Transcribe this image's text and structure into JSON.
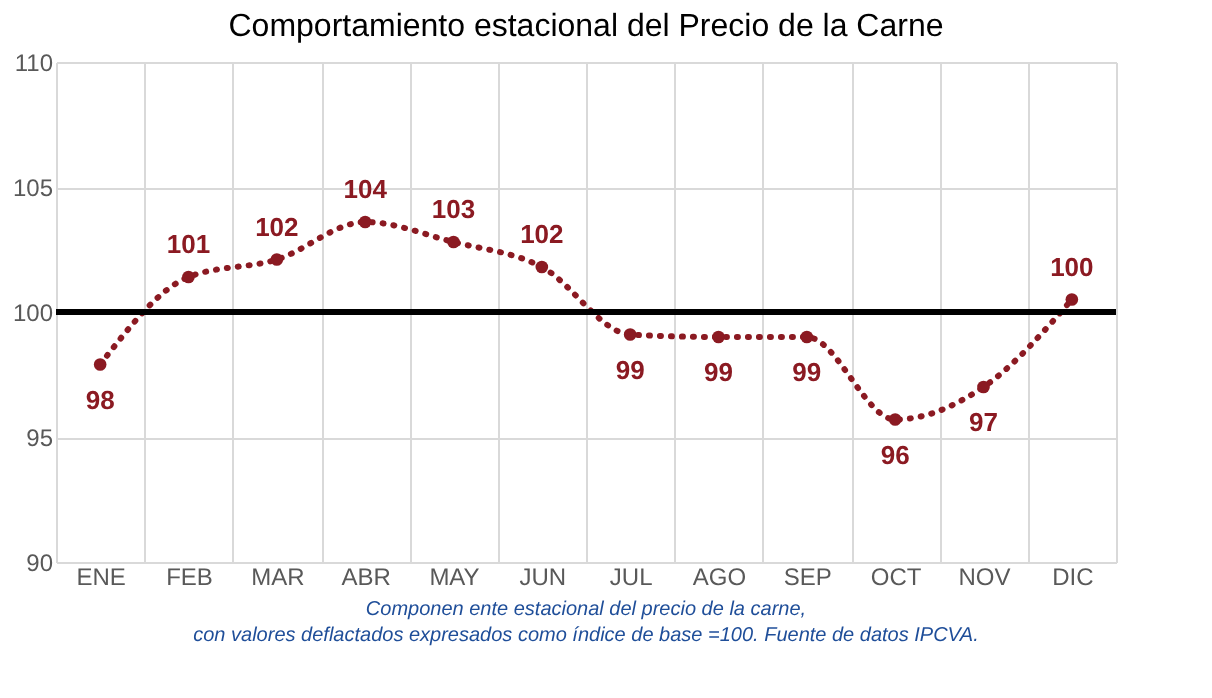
{
  "chart_data": {
    "type": "line",
    "title": "Comportamiento estacional del Precio de la Carne",
    "categories": [
      "ENE",
      "FEB",
      "MAR",
      "ABR",
      "MAY",
      "JUN",
      "JUL",
      "AGO",
      "SEP",
      "OCT",
      "NOV",
      "DIC"
    ],
    "series": [
      {
        "color": "#8b1a22",
        "values": [
          97.9,
          101.4,
          102.1,
          103.6,
          102.8,
          101.8,
          99.1,
          99.0,
          99.0,
          95.7,
          97.0,
          100.5
        ],
        "value_labels": [
          "98",
          "101",
          "102",
          "104",
          "103",
          "102",
          "99",
          "99",
          "99",
          "96",
          "97",
          "100"
        ]
      }
    ],
    "ylim": [
      90,
      110
    ],
    "yticks": [
      90,
      95,
      100,
      105,
      110
    ],
    "grid": true,
    "marker": "circle",
    "line_style": "dotted",
    "ref_lines": [
      {
        "axis": "y",
        "value": 100,
        "color": "#000000"
      }
    ],
    "annotations": [
      "Componen ente estacional del precio de la carne,",
      "con valores deflactados expresados como índice de base =100. Fuente de datos IPCVA."
    ]
  }
}
